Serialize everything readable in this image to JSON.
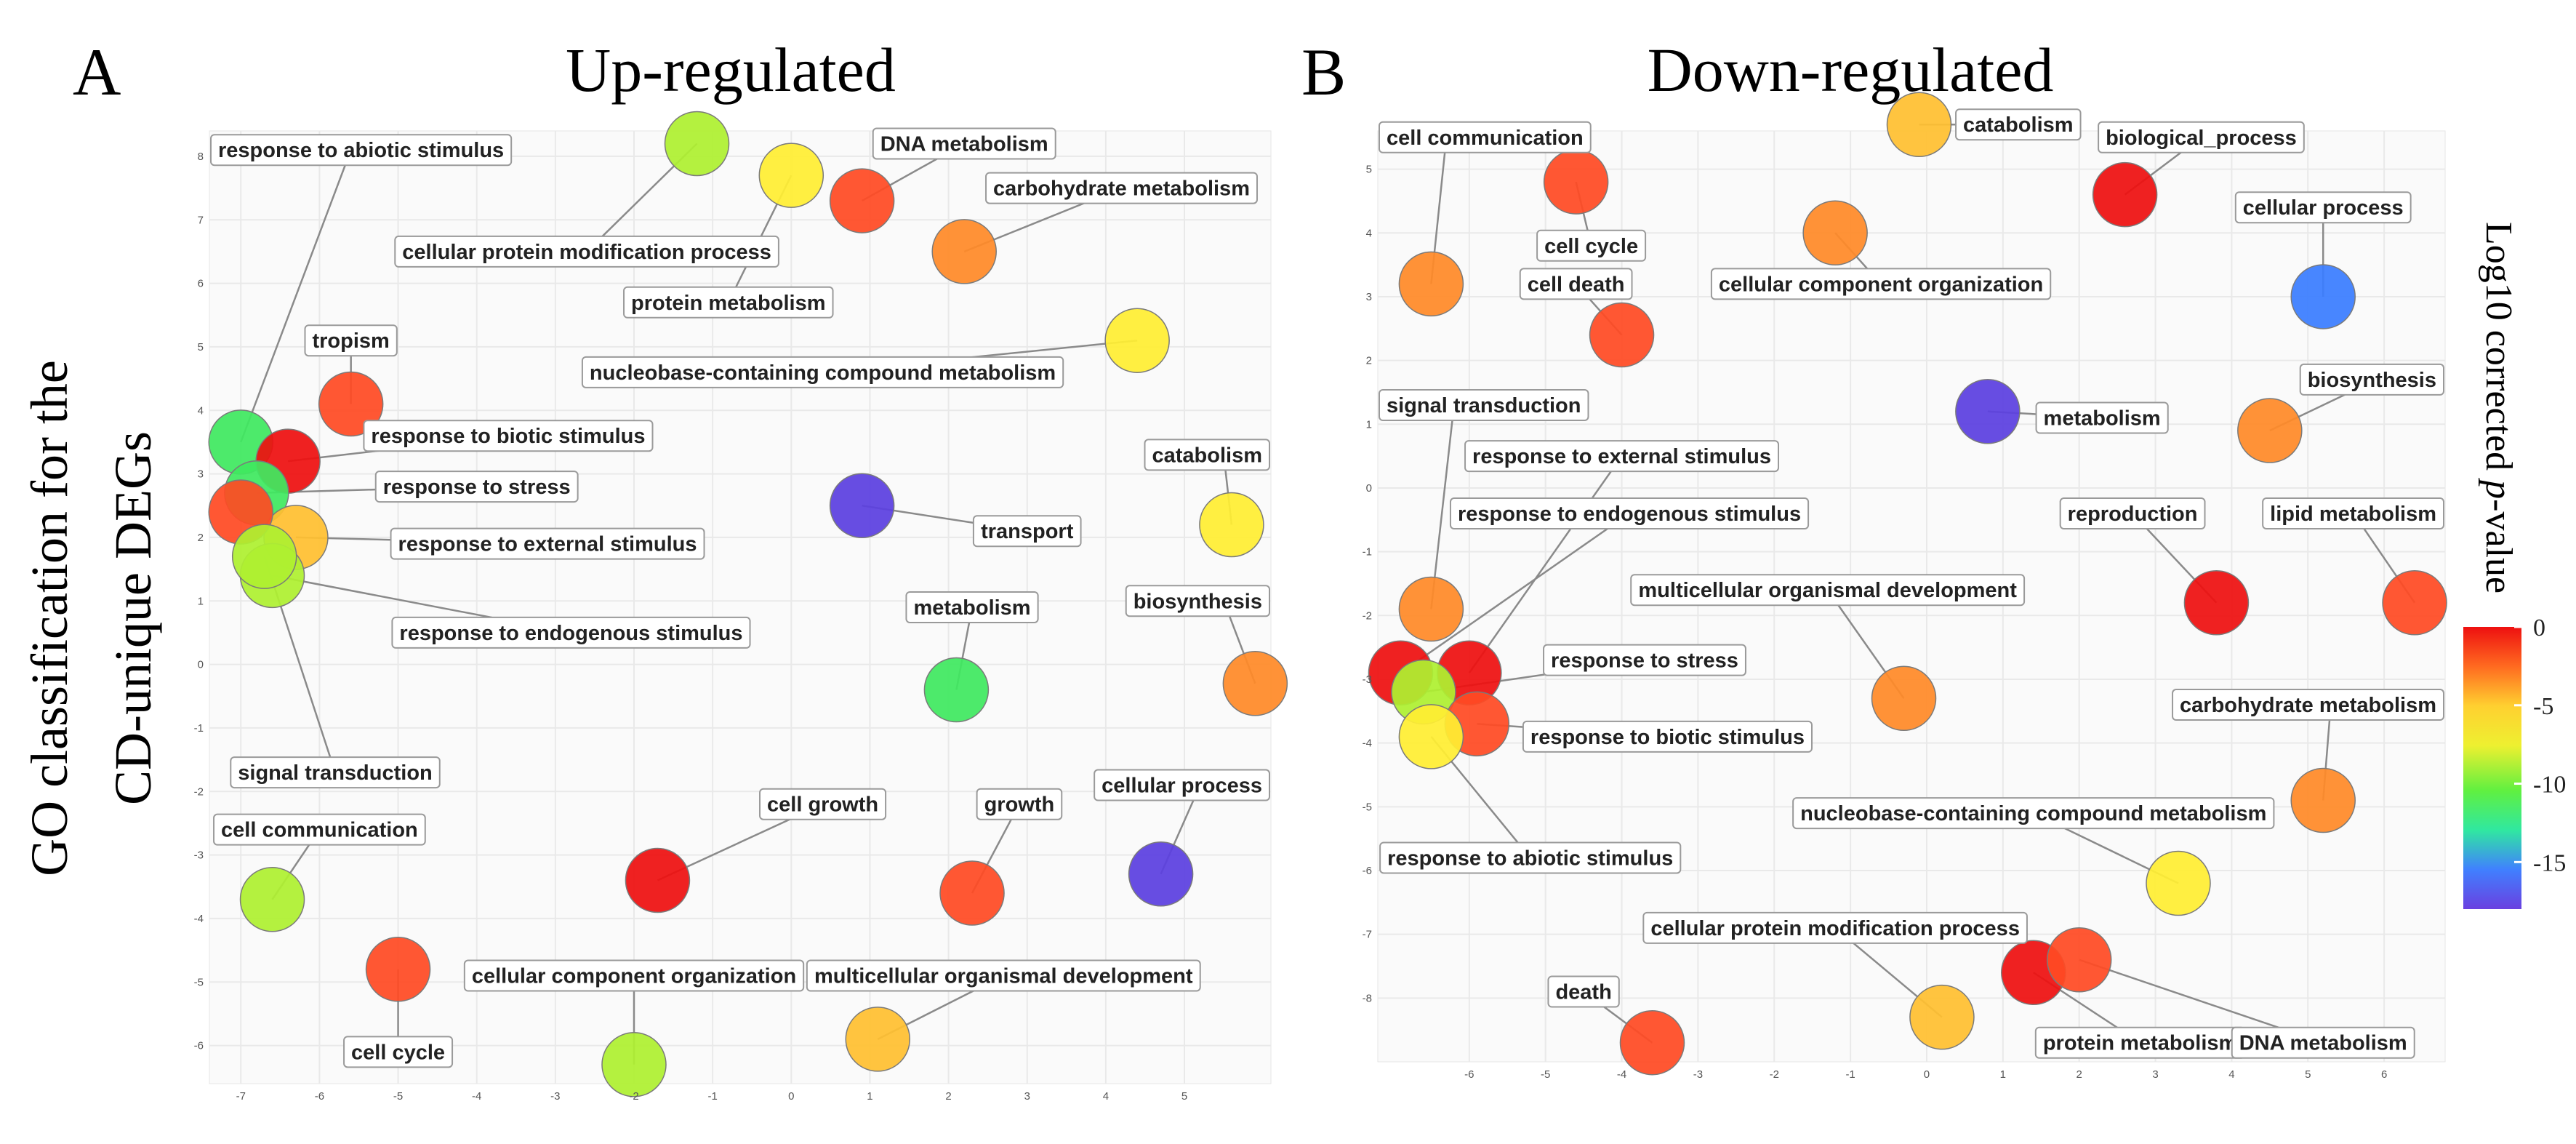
{
  "figure": {
    "y_title_line1": "GO classification for the",
    "y_title_line2": "CD-unique DEGs",
    "colorbar_title": "Log10 corrected p-value",
    "colorbar_title_pre": "Log10 corrected ",
    "colorbar_title_italic": "p",
    "colorbar_title_post": "-value",
    "colorbar_ticks": [
      "0",
      "-5",
      "-10",
      "-15"
    ],
    "colorbar_tick_values": [
      0,
      -5,
      -10,
      -15
    ],
    "colorbar_range": [
      -18,
      0
    ],
    "colors": [
      "#5b3fe0",
      "#3a7dff",
      "#3fe860",
      "#aef030",
      "#ffee33",
      "#ffc030",
      "#ff8a28",
      "#ff4a24",
      "#ee1010"
    ]
  },
  "chart_data": [
    {
      "type": "scatter",
      "panel_letter": "A",
      "title": "Up-regulated",
      "xlim": [
        -7.4,
        6.1
      ],
      "ylim": [
        -6.6,
        8.4
      ],
      "x_ticks": [
        -7,
        -6,
        -5,
        -4,
        -3,
        -2,
        -1,
        0,
        1,
        2,
        3,
        4,
        5
      ],
      "y_ticks": [
        8,
        7,
        6,
        5,
        4,
        3,
        2,
        1,
        0,
        -1,
        -2,
        -3,
        -4,
        -5,
        -6
      ],
      "points": [
        {
          "label": "response to abiotic stimulus",
          "x": -7.0,
          "y": 3.5,
          "value": -11,
          "label_x": -5.6,
          "label_y": 8.1
        },
        {
          "label": "cellular protein modification process",
          "x": -1.2,
          "y": 8.2,
          "value": -9,
          "label_x": -2.6,
          "label_y": 6.5
        },
        {
          "label": "protein metabolism",
          "x": 0.0,
          "y": 7.7,
          "value": -6,
          "label_x": -0.8,
          "label_y": 5.7
        },
        {
          "label": "DNA metabolism",
          "x": 0.9,
          "y": 7.3,
          "value": -1.5,
          "label_x": 2.2,
          "label_y": 8.2
        },
        {
          "label": "carbohydrate metabolism",
          "x": 2.2,
          "y": 6.5,
          "value": -3,
          "label_x": 4.2,
          "label_y": 7.5
        },
        {
          "label": "nucleobase-containing compound metabolism",
          "x": 4.4,
          "y": 5.1,
          "value": -6.5,
          "label_x": 0.4,
          "label_y": 4.6
        },
        {
          "label": "tropism",
          "x": -5.6,
          "y": 4.1,
          "value": -1,
          "label_x": -5.6,
          "label_y": 5.1
        },
        {
          "label": "response to biotic stimulus",
          "x": -6.4,
          "y": 3.2,
          "value": 0,
          "label_x": -3.6,
          "label_y": 3.6
        },
        {
          "label": "response to stress",
          "x": -6.8,
          "y": 2.7,
          "value": -11,
          "label_x": -4.0,
          "label_y": 2.8
        },
        {
          "label": "response to external stimulus",
          "x": -6.3,
          "y": 2.0,
          "value": -5,
          "label_x": -3.1,
          "label_y": 1.9
        },
        {
          "label": "response to endogenous stimulus",
          "x": -6.6,
          "y": 1.4,
          "value": -9,
          "label_x": -2.8,
          "label_y": 0.5
        },
        {
          "label": "",
          "x": -7.0,
          "y": 2.4,
          "value": -2,
          "label_x": null,
          "label_y": null
        },
        {
          "label": "signal transduction",
          "x": -6.7,
          "y": 1.7,
          "value": -9,
          "label_x": -5.8,
          "label_y": -1.7
        },
        {
          "label": "transport",
          "x": 0.9,
          "y": 2.5,
          "value": -18,
          "label_x": 3.0,
          "label_y": 2.1
        },
        {
          "label": "catabolism",
          "x": 5.6,
          "y": 2.2,
          "value": -6.5,
          "label_x": 5.5,
          "label_y": 3.3
        },
        {
          "label": "metabolism",
          "x": 2.1,
          "y": -0.4,
          "value": -12,
          "label_x": 2.3,
          "label_y": 0.9
        },
        {
          "label": "biosynthesis",
          "x": 5.9,
          "y": -0.3,
          "value": -3,
          "label_x": 5.5,
          "label_y": 1.0
        },
        {
          "label": "cell growth",
          "x": -1.7,
          "y": -3.4,
          "value": -0.5,
          "label_x": 0.4,
          "label_y": -2.2
        },
        {
          "label": "growth",
          "x": 2.3,
          "y": -3.6,
          "value": -1,
          "label_x": 2.9,
          "label_y": -2.2
        },
        {
          "label": "cellular process",
          "x": 4.7,
          "y": -3.3,
          "value": -18,
          "label_x": 5.2,
          "label_y": -1.9
        },
        {
          "label": "cell communication",
          "x": -6.6,
          "y": -3.7,
          "value": -9,
          "label_x": -6.0,
          "label_y": -2.6
        },
        {
          "label": "cell cycle",
          "x": -5.0,
          "y": -4.8,
          "value": -1.5,
          "label_x": -5.0,
          "label_y": -6.1
        },
        {
          "label": "cellular component organization",
          "x": -2.0,
          "y": -6.3,
          "value": -9,
          "label_x": -2.0,
          "label_y": -4.9
        },
        {
          "label": "multicellular organismal development",
          "x": 1.1,
          "y": -5.9,
          "value": -5,
          "label_x": 2.7,
          "label_y": -4.9
        }
      ]
    },
    {
      "type": "scatter",
      "panel_letter": "B",
      "title": "Down-regulated",
      "xlim": [
        -7.2,
        6.8
      ],
      "ylim": [
        -9.0,
        5.6
      ],
      "x_ticks": [
        -6,
        -5,
        -4,
        -3,
        -2,
        -1,
        0,
        1,
        2,
        3,
        4,
        5,
        6
      ],
      "y_ticks": [
        5,
        4,
        3,
        2,
        1,
        0,
        -1,
        -2,
        -3,
        -4,
        -5,
        -6,
        -7,
        -8
      ],
      "points": [
        {
          "label": "cell communication",
          "x": -6.5,
          "y": 3.2,
          "value": -2.5,
          "label_x": -6.3,
          "label_y": 5.5
        },
        {
          "label": "cell cycle",
          "x": -4.6,
          "y": 4.8,
          "value": -1.5,
          "label_x": -4.4,
          "label_y": 3.8
        },
        {
          "label": "cell death",
          "x": -4.0,
          "y": 2.4,
          "value": -1.5,
          "label_x": -4.6,
          "label_y": 3.2
        },
        {
          "label": "catabolism",
          "x": -0.1,
          "y": 5.7,
          "value": -4,
          "label_x": 1.2,
          "label_y": 5.7
        },
        {
          "label": "cellular component organization",
          "x": -1.2,
          "y": 4.0,
          "value": -3,
          "label_x": -0.6,
          "label_y": 3.2
        },
        {
          "label": "biological_process",
          "x": 2.6,
          "y": 4.6,
          "value": -0.5,
          "label_x": 3.6,
          "label_y": 5.5
        },
        {
          "label": "cellular process",
          "x": 5.2,
          "y": 3.0,
          "value": -16,
          "label_x": 5.2,
          "label_y": 4.4
        },
        {
          "label": "signal transduction",
          "x": -6.5,
          "y": -1.9,
          "value": -3,
          "label_x": -6.2,
          "label_y": 1.3
        },
        {
          "label": "metabolism",
          "x": 0.8,
          "y": 1.2,
          "value": -18,
          "label_x": 2.3,
          "label_y": 1.1
        },
        {
          "label": "biosynthesis",
          "x": 4.5,
          "y": 0.9,
          "value": -3,
          "label_x": 5.9,
          "label_y": 1.7
        },
        {
          "label": "response to external stimulus",
          "x": -6.0,
          "y": -2.9,
          "value": -0.5,
          "label_x": -4.0,
          "label_y": 0.5
        },
        {
          "label": "response to endogenous stimulus",
          "x": -6.9,
          "y": -2.9,
          "value": -0.5,
          "label_x": -3.9,
          "label_y": -0.4
        },
        {
          "label": "reproduction",
          "x": 3.8,
          "y": -1.8,
          "value": -0.5,
          "label_x": 2.7,
          "label_y": -0.4
        },
        {
          "label": "lipid metabolism",
          "x": 6.4,
          "y": -1.8,
          "value": -1.5,
          "label_x": 5.6,
          "label_y": -0.4
        },
        {
          "label": "multicellular organismal development",
          "x": -0.3,
          "y": -3.3,
          "value": -3.5,
          "label_x": -1.3,
          "label_y": -1.6
        },
        {
          "label": "response to stress",
          "x": -6.6,
          "y": -3.2,
          "value": -9,
          "label_x": -3.7,
          "label_y": -2.7
        },
        {
          "label": "response to biotic stimulus",
          "x": -5.9,
          "y": -3.7,
          "value": -1,
          "label_x": -3.4,
          "label_y": -3.9
        },
        {
          "label": "response to abiotic stimulus",
          "x": -6.5,
          "y": -3.9,
          "value": -6,
          "label_x": -5.2,
          "label_y": -5.8
        },
        {
          "label": "carbohydrate metabolism",
          "x": 5.2,
          "y": -4.9,
          "value": -3,
          "label_x": 5.3,
          "label_y": -3.4
        },
        {
          "label": "nucleobase-containing compound metabolism",
          "x": 3.3,
          "y": -6.2,
          "value": -6.5,
          "label_x": 1.4,
          "label_y": -5.1
        },
        {
          "label": "cellular protein modification process",
          "x": 0.2,
          "y": -8.3,
          "value": -4.5,
          "label_x": -1.2,
          "label_y": -6.9
        },
        {
          "label": "death",
          "x": -3.6,
          "y": -8.7,
          "value": -1.5,
          "label_x": -4.5,
          "label_y": -7.9
        },
        {
          "label": "protein metabolism",
          "x": 1.4,
          "y": -7.6,
          "value": 0,
          "label_x": 2.8,
          "label_y": -8.7
        },
        {
          "label": "DNA metabolism",
          "x": 2.0,
          "y": -7.4,
          "value": -1,
          "label_x": 5.2,
          "label_y": -8.7
        }
      ]
    }
  ]
}
